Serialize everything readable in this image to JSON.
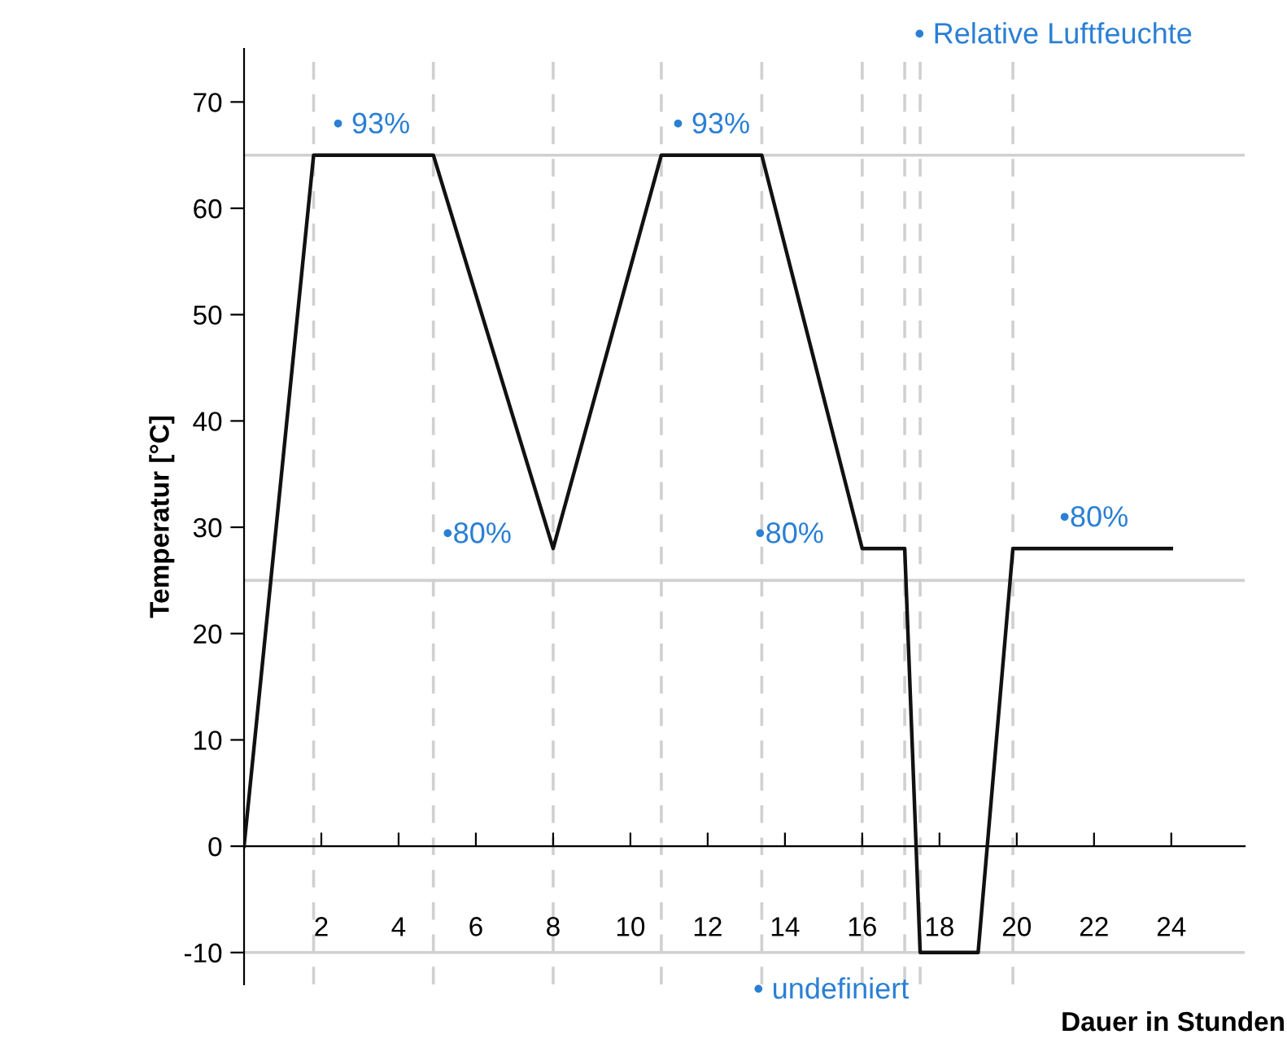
{
  "chart_data": {
    "type": "line",
    "xlabel": "Dauer in Stunden",
    "ylabel": "Temperatur [°C]",
    "series": [
      {
        "color": "#111111",
        "x": [
          0,
          1.8,
          4.9,
          8.0,
          10.8,
          13.4,
          16.0,
          17.1,
          17.5,
          19.0,
          19.9,
          24
        ],
        "values": [
          0,
          65,
          65,
          28,
          65,
          65,
          28,
          28,
          -10,
          -10,
          28,
          28
        ]
      }
    ],
    "xlim": [
      0,
      25.9
    ],
    "xticks": [
      2,
      4,
      6,
      8,
      10,
      12,
      14,
      16,
      18,
      20,
      22,
      24
    ],
    "ylim": [
      -13,
      75
    ],
    "yticks": [
      -10,
      0,
      10,
      20,
      30,
      40,
      50,
      60,
      70
    ],
    "grid": false,
    "line_style": "solid",
    "marker": "none",
    "ref_lines": [
      {
        "axis": "y",
        "value": 65,
        "color": "#d0d0d0",
        "line_style": "solid"
      },
      {
        "axis": "y",
        "value": 25,
        "color": "#d0d0d0",
        "line_style": "solid"
      },
      {
        "axis": "y",
        "value": -10,
        "color": "#d0d0d0",
        "line_style": "solid"
      },
      {
        "axis": "x",
        "value": 1.8,
        "color": "#d0d0d0",
        "line_style": "dashed"
      },
      {
        "axis": "x",
        "value": 4.9,
        "color": "#d0d0d0",
        "line_style": "dashed"
      },
      {
        "axis": "x",
        "value": 8.0,
        "color": "#d0d0d0",
        "line_style": "dashed"
      },
      {
        "axis": "x",
        "value": 10.8,
        "color": "#d0d0d0",
        "line_style": "dashed"
      },
      {
        "axis": "x",
        "value": 13.4,
        "color": "#d0d0d0",
        "line_style": "dashed"
      },
      {
        "axis": "x",
        "value": 16.0,
        "color": "#d0d0d0",
        "line_style": "dashed"
      },
      {
        "axis": "x",
        "value": 17.1,
        "color": "#d0d0d0",
        "line_style": "dashed"
      },
      {
        "axis": "x",
        "value": 17.5,
        "color": "#d0d0d0",
        "line_style": "dashed"
      },
      {
        "axis": "x",
        "value": 19.9,
        "color": "#d0d0d0",
        "line_style": "dashed"
      }
    ],
    "annotations": [
      "• Relative Luftfeuchte",
      {
        "text": "• 93%",
        "x": 3.3,
        "y": 65
      },
      {
        "text": "• 93%",
        "x": 12.1,
        "y": 65
      },
      "•80%",
      "•80%",
      {
        "text": "•80%",
        "x": 22.0,
        "y": 28
      },
      "• undefiniert"
    ]
  }
}
